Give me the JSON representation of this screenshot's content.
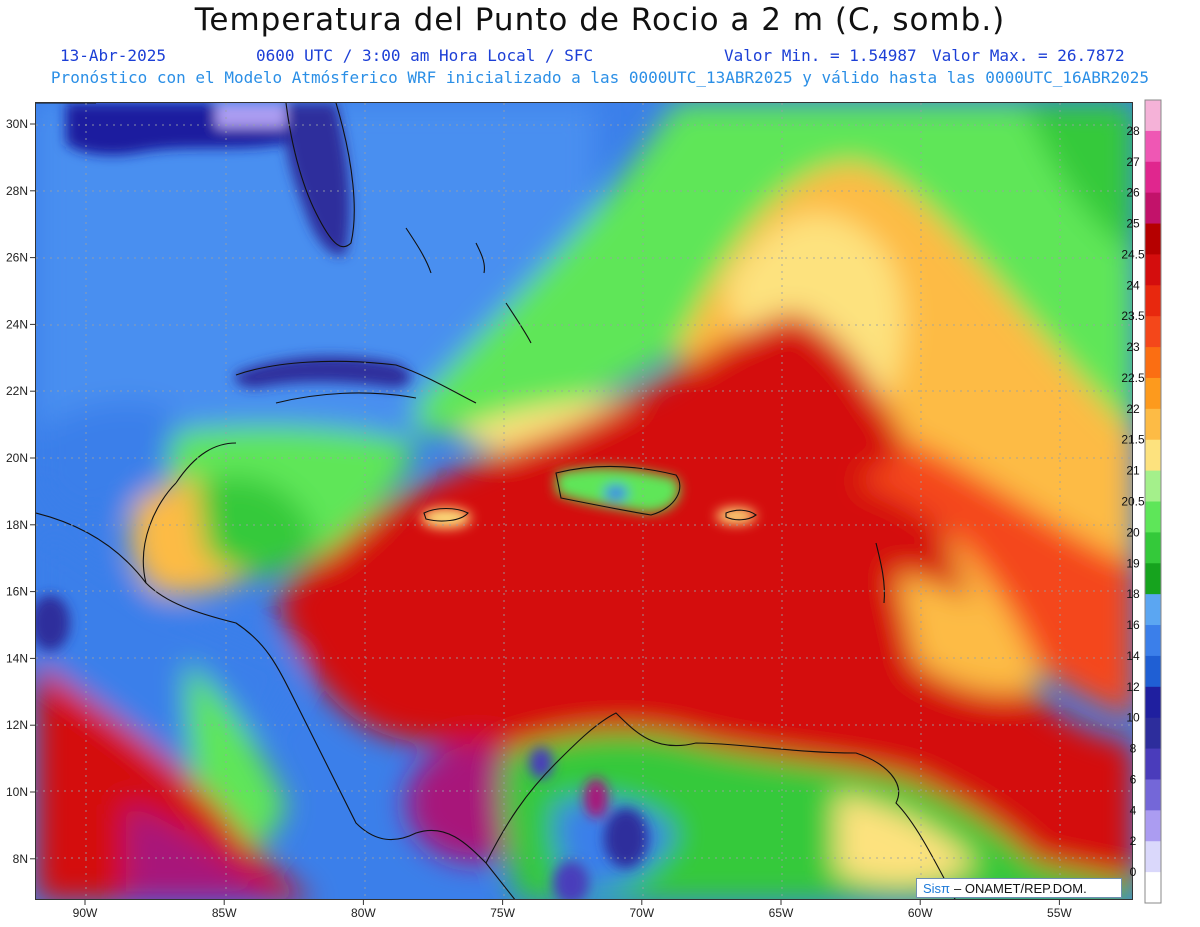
{
  "header": {
    "title": "Temperatura del Punto de Rocio a 2 m (C, somb.)",
    "date": "13-Abr-2025",
    "time": "0600 UTC / 3:00 am Hora Local / SFC",
    "min": "Valor Min. = 1.54987",
    "max": "Valor Max. = 26.7872",
    "model": "Pronóstico con el Modelo Atmósferico WRF inicializado a las 0000UTC_13ABR2025 y válido hasta las  0000UTC_16ABR2025"
  },
  "axes": {
    "lat_labels": [
      "30N",
      "28N",
      "26N",
      "24N",
      "22N",
      "20N",
      "18N",
      "16N",
      "14N",
      "12N",
      "10N",
      "8N"
    ],
    "lon_labels": [
      "90W",
      "85W",
      "80W",
      "75W",
      "70W",
      "65W",
      "60W",
      "55W"
    ]
  },
  "colorbar": {
    "labels": [
      "28",
      "27",
      "26",
      "25",
      "24.5",
      "24",
      "23.5",
      "23",
      "22.5",
      "22",
      "21.5",
      "21",
      "20.5",
      "20",
      "19",
      "18",
      "16",
      "14",
      "12",
      "10",
      "8",
      "6",
      "4",
      "2",
      "0"
    ],
    "colors": [
      "#f5b2d8",
      "#ef57b4",
      "#e0268e",
      "#c2126a",
      "#b50000",
      "#d40d0d",
      "#e8280e",
      "#f4471a",
      "#fb6e12",
      "#fd9a1d",
      "#fdbb45",
      "#fde27e",
      "#a4f08b",
      "#5ee659",
      "#34c93a",
      "#16a31e",
      "#5ba6f2",
      "#3b7fea",
      "#1f5fd4",
      "#1f1f9f",
      "#2d2d9c",
      "#4a3cbb",
      "#7467d8",
      "#ab9cf1",
      "#dad8fb",
      "#ffffff"
    ]
  },
  "credit": {
    "logo": "Sisπ",
    "text": "– ONAMET/REP.DOM."
  }
}
